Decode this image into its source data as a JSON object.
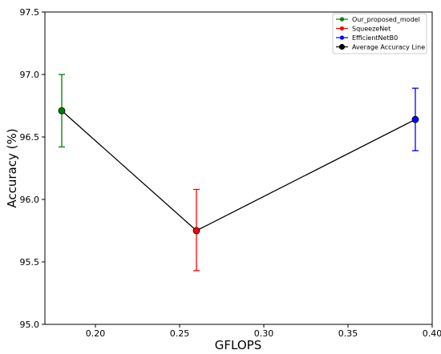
{
  "chart_data": {
    "type": "scatter",
    "title": "",
    "xlabel": "GFLOPS",
    "ylabel": "Accuracy (%)",
    "xlim": [
      0.17,
      0.4
    ],
    "ylim": [
      95.0,
      97.5
    ],
    "x_ticks": [
      0.2,
      0.25,
      0.3,
      0.35,
      0.4
    ],
    "y_ticks": [
      95.0,
      95.5,
      96.0,
      96.5,
      97.0,
      97.5
    ],
    "grid": false,
    "legend_position": "top-right",
    "series": [
      {
        "name": "Our_proposed_model",
        "color": "#008000",
        "x": 0.18,
        "y": 96.71,
        "err_low": 96.42,
        "err_high": 97.0
      },
      {
        "name": "SqueezeNet",
        "color": "#ff0000",
        "x": 0.26,
        "y": 95.75,
        "err_low": 95.43,
        "err_high": 96.08
      },
      {
        "name": "EfficientNetB0",
        "color": "#0000ff",
        "x": 0.39,
        "y": 96.64,
        "err_low": 96.39,
        "err_high": 96.89
      }
    ],
    "average_line": {
      "name": "Average Accuracy Line",
      "color": "#000000"
    }
  }
}
